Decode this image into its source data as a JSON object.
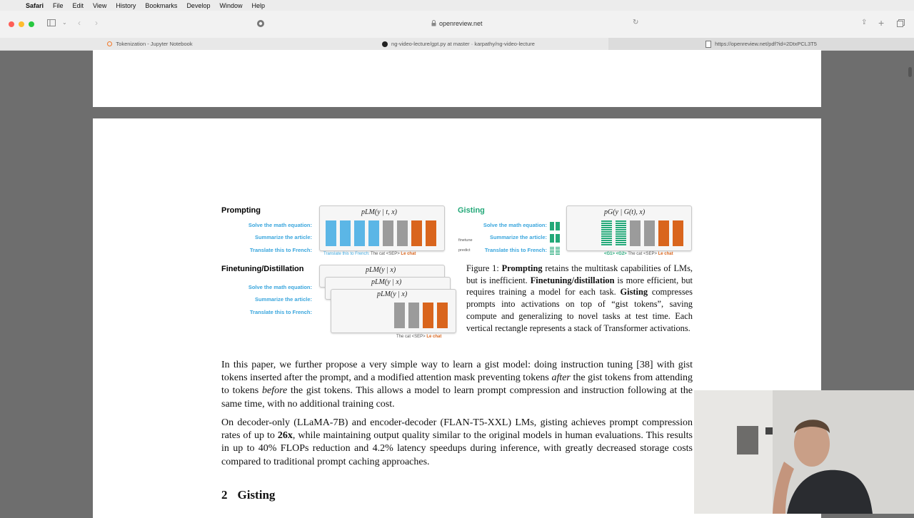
{
  "menubar": {
    "app": "Safari",
    "items": [
      "File",
      "Edit",
      "View",
      "History",
      "Bookmarks",
      "Develop",
      "Window",
      "Help"
    ]
  },
  "toolbar": {
    "address": "openreview.net"
  },
  "tabs": [
    {
      "label": "Tokenization - Jupyter Notebook"
    },
    {
      "label": "ng-video-lecture/gpt.py at master · karpathy/ng-video-lecture"
    },
    {
      "label": "https://openreview.net/pdf?id=2DtxPCL3T5"
    }
  ],
  "figure": {
    "prompting_title": "Prompting",
    "gisting_title": "Gisting",
    "finetuning_title": "Finetuning/Distillation",
    "task_solve": "Solve the math equation:",
    "task_summarize": "Summarize the article:",
    "task_translate": "Translate this to French:",
    "formula_lm_prompt": "pLM(y | t, x)",
    "formula_g": "pG(y | G(t), x)",
    "formula_lm": "pLM(y | x)",
    "prompting_footer_blue": "Translate this to French:",
    "prompting_footer_gray": "The cat <SEP>",
    "prompting_footer_orange": "Le chat",
    "gist_footer_green": "<G1> <G2>",
    "gist_footer_gray": "The cat <SEP>",
    "gist_footer_orange": "Le chat",
    "ft_footer_gray": "The cat <SEP>",
    "ft_footer_orange": "Le chat",
    "finetune_label": "finetune",
    "predict_label": "predict"
  },
  "caption": {
    "lead": "Figure 1: ",
    "b1": "Prompting",
    "t1": " retains the multitask capabilities of LMs, but is inefficient. ",
    "b2": "Finetuning/distillation",
    "t2": " is more efficient, but requires training a model for each task. ",
    "b3": "Gisting",
    "t3": " compresses prompts into activations on top of “gist tokens”, saving compute and generalizing to novel tasks at test time.  Each vertical rectangle represents a stack of Transformer activations."
  },
  "para1": {
    "a": "In this paper, we further propose a very simple way to learn a gist model: doing instruction tuning [38] with gist tokens inserted after the prompt, and a modified attention mask preventing tokens ",
    "i1": "after",
    "b": " the gist tokens from attending to tokens ",
    "i2": "before",
    "c": " the gist tokens. This allows a model to learn prompt compression and instruction following at the same time, with no additional training cost."
  },
  "para2": {
    "a": "On decoder-only (LLaMA-7B) and encoder-decoder (FLAN-T5-XXL) LMs, gisting achieves prompt compression rates of up to ",
    "b": "26x",
    "c": ", while maintaining output quality similar to the original models in human evaluations. This results in up to 40% FLOPs reduction and 4.2% latency speedups during inference, with greatly decreased storage costs compared to traditional prompt caching approaches."
  },
  "section": {
    "number": "2",
    "title": "Gisting"
  },
  "colors": {
    "blue": "#5bb6e6",
    "gray": "#9b9b9b",
    "orange": "#d9651d",
    "green": "#23a878"
  }
}
